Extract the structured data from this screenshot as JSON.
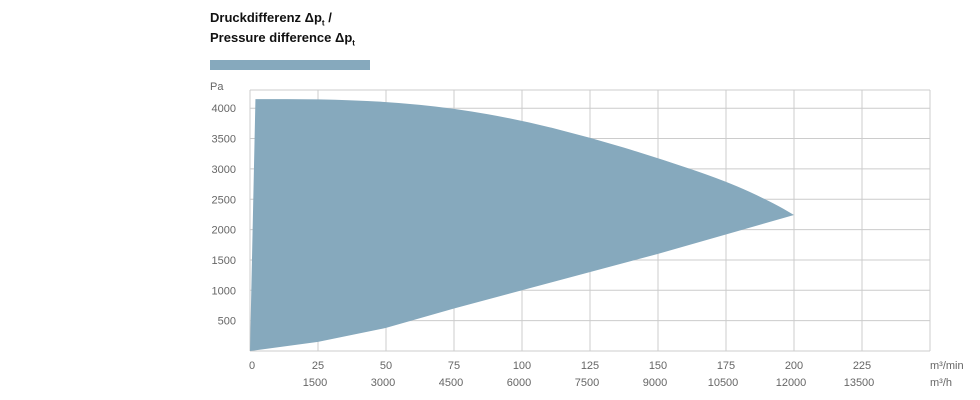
{
  "chart_data": {
    "type": "area",
    "title_line1_prefix": "Druckdifferenz Δp",
    "title_line1_sub": "t",
    "title_line1_suffix": " /",
    "title_line2_prefix": "Pressure difference Δp",
    "title_line2_sub": "t",
    "ylabel": "Pa",
    "xlabel_primary_unit": "m³/min",
    "xlabel_secondary_unit": "m³/h",
    "xlim": [
      0,
      250
    ],
    "ylim": [
      0,
      4300
    ],
    "grid": true,
    "y_ticks": [
      500,
      1000,
      1500,
      2000,
      2500,
      3000,
      3500,
      4000
    ],
    "x_ticks": [
      0,
      25,
      50,
      75,
      100,
      125,
      150,
      175,
      200,
      225
    ],
    "x_ticks_secondary": [
      {
        "value": 25,
        "label": "1500"
      },
      {
        "value": 50,
        "label": "3000"
      },
      {
        "value": 75,
        "label": "4500"
      },
      {
        "value": 100,
        "label": "6000"
      },
      {
        "value": 125,
        "label": "7500"
      },
      {
        "value": 150,
        "label": "9000"
      },
      {
        "value": 175,
        "label": "10500"
      },
      {
        "value": 200,
        "label": "12000"
      },
      {
        "value": 225,
        "label": "13500"
      }
    ],
    "fill_color": "#86a9bd",
    "grid_color": "#cccccc",
    "series": [
      {
        "upper": [
          {
            "x": 2,
            "y": 4150
          },
          {
            "x": 25,
            "y": 4150
          },
          {
            "x": 50,
            "y": 4110
          },
          {
            "x": 75,
            "y": 4000
          },
          {
            "x": 100,
            "y": 3800
          },
          {
            "x": 125,
            "y": 3520
          },
          {
            "x": 150,
            "y": 3180
          },
          {
            "x": 175,
            "y": 2800
          },
          {
            "x": 192,
            "y": 2450
          },
          {
            "x": 200,
            "y": 2240
          }
        ],
        "lower": [
          {
            "x": 200,
            "y": 2240
          },
          {
            "x": 150,
            "y": 1600
          },
          {
            "x": 100,
            "y": 1000
          },
          {
            "x": 75,
            "y": 700
          },
          {
            "x": 50,
            "y": 380
          },
          {
            "x": 25,
            "y": 150
          },
          {
            "x": 10,
            "y": 60
          },
          {
            "x": 0,
            "y": 0
          }
        ]
      }
    ]
  }
}
